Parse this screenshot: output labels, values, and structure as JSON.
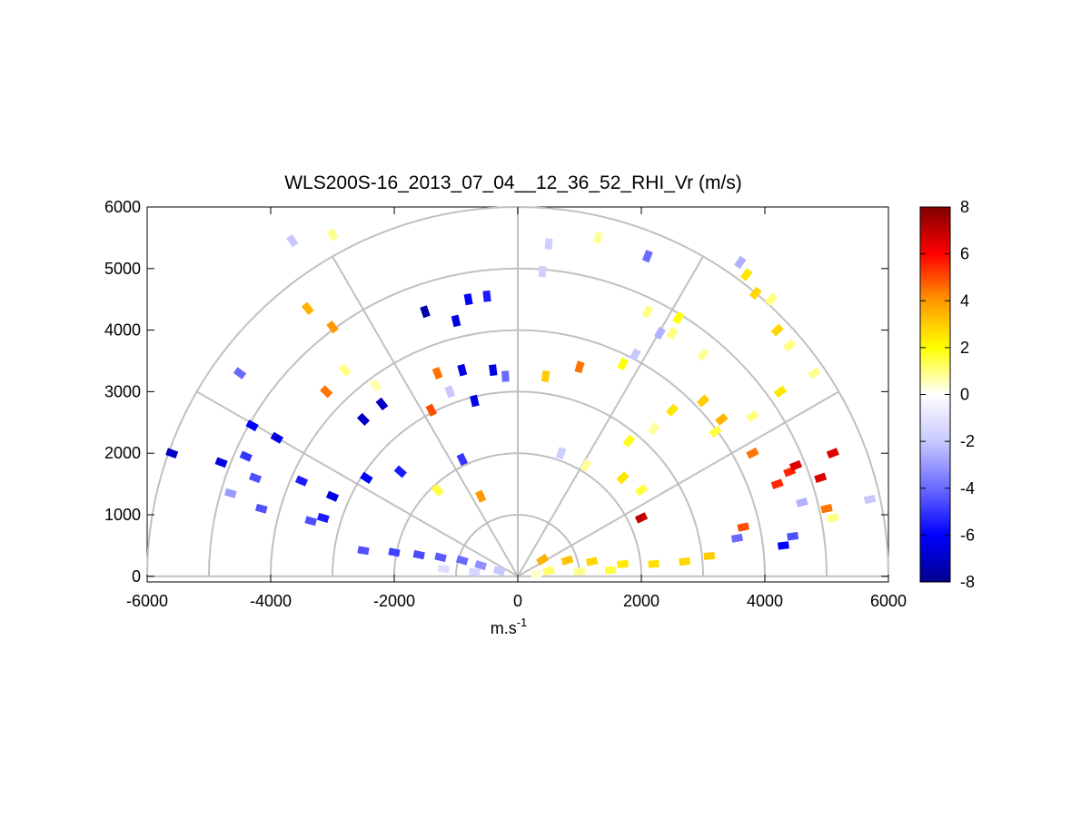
{
  "chart_data": {
    "type": "heatmap",
    "projection": "polar-half (RHI sector)",
    "title": "WLS200S-16_2013_07_04__12_36_52_RHI_Vr (m/s)",
    "xlabel": "m.s",
    "xlabel_superscript": "-1",
    "ylabel": "",
    "xlim": [
      -6000,
      6000
    ],
    "ylim": [
      0,
      6000
    ],
    "x_ticks": [
      "-6000",
      "-4000",
      "-2000",
      "0",
      "2000",
      "4000",
      "6000"
    ],
    "y_ticks": [
      "0",
      "1000",
      "2000",
      "3000",
      "4000",
      "5000",
      "6000"
    ],
    "range_rings": [
      1000,
      2000,
      3000,
      4000,
      5000,
      6000
    ],
    "radial_lines_deg": [
      0,
      30,
      60,
      90,
      120,
      150,
      180
    ],
    "grid": true,
    "colorbar": {
      "min": -8,
      "max": 8,
      "ticks": [
        "8",
        "6",
        "4",
        "2",
        "0",
        "-2",
        "-4",
        "-6",
        "-8"
      ],
      "colormap": [
        "#00008b",
        "#0000ff",
        "#6a6aff",
        "#c8c8ff",
        "#ffffff",
        "#ffff00",
        "#ff9900",
        "#ff0000",
        "#800000"
      ],
      "placement": "right"
    },
    "cells": [
      {
        "x": -2500,
        "y": 420,
        "v": -4.5
      },
      {
        "x": -2000,
        "y": 390,
        "v": -4.8
      },
      {
        "x": -1600,
        "y": 350,
        "v": -4.6
      },
      {
        "x": -1250,
        "y": 310,
        "v": -4.3
      },
      {
        "x": -900,
        "y": 260,
        "v": -4.0
      },
      {
        "x": -600,
        "y": 180,
        "v": -3.2
      },
      {
        "x": -300,
        "y": 90,
        "v": -2.0
      },
      {
        "x": -700,
        "y": 70,
        "v": -1.5
      },
      {
        "x": -1200,
        "y": 120,
        "v": -1.2
      },
      {
        "x": 400,
        "y": 270,
        "v": 3.5
      },
      {
        "x": 800,
        "y": 260,
        "v": 3.2
      },
      {
        "x": 1200,
        "y": 240,
        "v": 2.8
      },
      {
        "x": 1700,
        "y": 200,
        "v": 2.4
      },
      {
        "x": 2200,
        "y": 200,
        "v": 2.6
      },
      {
        "x": 2700,
        "y": 240,
        "v": 2.8
      },
      {
        "x": 3100,
        "y": 330,
        "v": 3.0
      },
      {
        "x": 500,
        "y": 90,
        "v": 1.2
      },
      {
        "x": 1000,
        "y": 80,
        "v": 0.9
      },
      {
        "x": 1500,
        "y": 100,
        "v": 1.5
      },
      {
        "x": 300,
        "y": 40,
        "v": 0.4
      },
      {
        "x": 2100,
        "y": 5200,
        "v": -4.0
      },
      {
        "x": 1300,
        "y": 5500,
        "v": 0.8
      },
      {
        "x": 500,
        "y": 5400,
        "v": -1.8
      },
      {
        "x": 400,
        "y": 4950,
        "v": -1.8
      },
      {
        "x": -800,
        "y": 4500,
        "v": -6.0
      },
      {
        "x": -500,
        "y": 4550,
        "v": -5.5
      },
      {
        "x": -1000,
        "y": 4150,
        "v": -6.5
      },
      {
        "x": -1500,
        "y": 4300,
        "v": -7.5
      },
      {
        "x": -1300,
        "y": 3300,
        "v": 4.5
      },
      {
        "x": -900,
        "y": 3350,
        "v": -6.5
      },
      {
        "x": -400,
        "y": 3350,
        "v": -6.5
      },
      {
        "x": -1100,
        "y": 3000,
        "v": -2.0
      },
      {
        "x": -700,
        "y": 2850,
        "v": -6.5
      },
      {
        "x": -1400,
        "y": 2700,
        "v": 5.0
      },
      {
        "x": -2200,
        "y": 2800,
        "v": -7.0
      },
      {
        "x": -2500,
        "y": 2550,
        "v": -7.0
      },
      {
        "x": -2300,
        "y": 3100,
        "v": 0.7
      },
      {
        "x": -2800,
        "y": 3350,
        "v": 1.0
      },
      {
        "x": -3100,
        "y": 3000,
        "v": 4.5
      },
      {
        "x": -3000,
        "y": 4050,
        "v": 4.0
      },
      {
        "x": -3400,
        "y": 4350,
        "v": 3.5
      },
      {
        "x": -3650,
        "y": 5450,
        "v": -2.0
      },
      {
        "x": -3000,
        "y": 5550,
        "v": 0.9
      },
      {
        "x": -4500,
        "y": 3300,
        "v": -4.0
      },
      {
        "x": -4300,
        "y": 2450,
        "v": -6.0
      },
      {
        "x": -3900,
        "y": 2250,
        "v": -6.5
      },
      {
        "x": -4400,
        "y": 1950,
        "v": -5.0
      },
      {
        "x": -4250,
        "y": 1600,
        "v": -4.5
      },
      {
        "x": -4800,
        "y": 1850,
        "v": -6.5
      },
      {
        "x": -5600,
        "y": 2000,
        "v": -7.0
      },
      {
        "x": -4650,
        "y": 1350,
        "v": -3.0
      },
      {
        "x": -4150,
        "y": 1100,
        "v": -4.5
      },
      {
        "x": -3500,
        "y": 1550,
        "v": -5.5
      },
      {
        "x": -3350,
        "y": 900,
        "v": -4.5
      },
      {
        "x": -3150,
        "y": 950,
        "v": -5.5
      },
      {
        "x": -3000,
        "y": 1300,
        "v": -6.5
      },
      {
        "x": -2450,
        "y": 1600,
        "v": -6.0
      },
      {
        "x": -1900,
        "y": 1700,
        "v": -5.5
      },
      {
        "x": -1300,
        "y": 1400,
        "v": 1.5
      },
      {
        "x": -900,
        "y": 1900,
        "v": -5.0
      },
      {
        "x": -600,
        "y": 1300,
        "v": 4.0
      },
      {
        "x": 700,
        "y": 2000,
        "v": -1.8
      },
      {
        "x": 1100,
        "y": 1800,
        "v": 0.8
      },
      {
        "x": 1700,
        "y": 1600,
        "v": 2.5
      },
      {
        "x": 2000,
        "y": 1400,
        "v": 1.5
      },
      {
        "x": 2000,
        "y": 950,
        "v": 7.0
      },
      {
        "x": 2200,
        "y": 2400,
        "v": 0.8
      },
      {
        "x": 1800,
        "y": 2200,
        "v": 1.8
      },
      {
        "x": 2500,
        "y": 2700,
        "v": 2.5
      },
      {
        "x": 3000,
        "y": 3600,
        "v": 0.8
      },
      {
        "x": 3000,
        "y": 2850,
        "v": 3.0
      },
      {
        "x": 3300,
        "y": 2550,
        "v": 3.5
      },
      {
        "x": 3200,
        "y": 2350,
        "v": 1.5
      },
      {
        "x": 3800,
        "y": 2000,
        "v": 4.5
      },
      {
        "x": 4400,
        "y": 1700,
        "v": 5.5
      },
      {
        "x": 4200,
        "y": 1500,
        "v": 5.5
      },
      {
        "x": 4500,
        "y": 1800,
        "v": 6.5
      },
      {
        "x": 4900,
        "y": 1600,
        "v": 6.5
      },
      {
        "x": 5100,
        "y": 2000,
        "v": 6.5
      },
      {
        "x": 4600,
        "y": 1200,
        "v": -2.5
      },
      {
        "x": 5000,
        "y": 1100,
        "v": 4.5
      },
      {
        "x": 5100,
        "y": 950,
        "v": 1.0
      },
      {
        "x": 5700,
        "y": 1250,
        "v": -2.0
      },
      {
        "x": 4300,
        "y": 500,
        "v": -6.0
      },
      {
        "x": 4450,
        "y": 650,
        "v": -4.5
      },
      {
        "x": 3650,
        "y": 800,
        "v": 5.0
      },
      {
        "x": 3550,
        "y": 620,
        "v": -4.0
      },
      {
        "x": 3700,
        "y": 4900,
        "v": 2.5
      },
      {
        "x": 3600,
        "y": 5100,
        "v": -2.5
      },
      {
        "x": 3850,
        "y": 4600,
        "v": 2.8
      },
      {
        "x": 4100,
        "y": 4500,
        "v": 1.0
      },
      {
        "x": 4200,
        "y": 4000,
        "v": 2.8
      },
      {
        "x": 4400,
        "y": 3750,
        "v": 1.0
      },
      {
        "x": 4800,
        "y": 3300,
        "v": 0.9
      },
      {
        "x": 4250,
        "y": 3000,
        "v": 2.5
      },
      {
        "x": 3800,
        "y": 2600,
        "v": 1.0
      },
      {
        "x": 1000,
        "y": 3400,
        "v": 4.5
      },
      {
        "x": 450,
        "y": 3250,
        "v": 3.0
      },
      {
        "x": 1700,
        "y": 3450,
        "v": 2.0
      },
      {
        "x": 1900,
        "y": 3600,
        "v": -2.0
      },
      {
        "x": 2300,
        "y": 3950,
        "v": -2.5
      },
      {
        "x": 2500,
        "y": 3950,
        "v": 1.0
      },
      {
        "x": 2600,
        "y": 4200,
        "v": 2.0
      },
      {
        "x": 2100,
        "y": 4300,
        "v": 1.0
      },
      {
        "x": -200,
        "y": 3250,
        "v": -4.0
      }
    ]
  }
}
